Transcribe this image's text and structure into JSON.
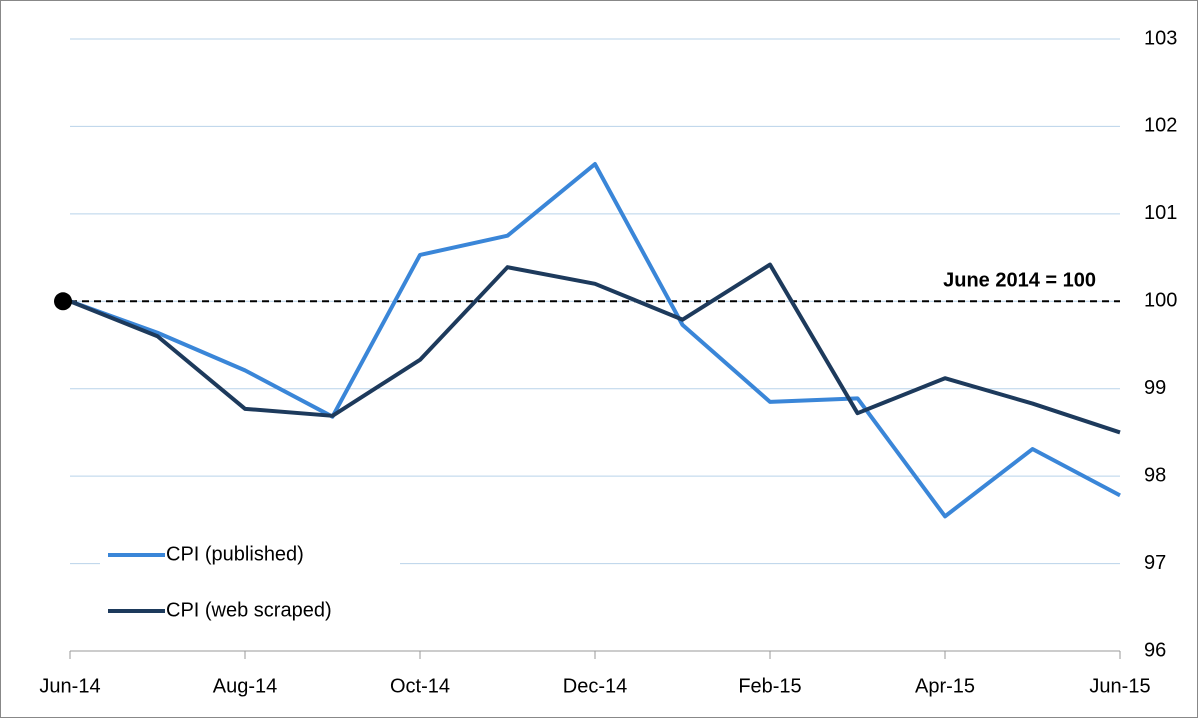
{
  "chart_data": {
    "type": "line",
    "categories": [
      "Jun-14",
      null,
      "Aug-14",
      null,
      "Oct-14",
      null,
      "Dec-14",
      null,
      "Feb-15",
      null,
      "Apr-15",
      null,
      "Jun-15"
    ],
    "series": [
      {
        "name": "CPI (published)",
        "color": "#3a86d8",
        "values": [
          100,
          99.64,
          99.21,
          98.68,
          100.53,
          100.75,
          101.57,
          99.73,
          98.85,
          98.89,
          97.54,
          98.31,
          97.78
        ]
      },
      {
        "name": "CPI (web scraped)",
        "color": "#1d3a5c",
        "values": [
          100,
          99.6,
          98.77,
          98.69,
          99.33,
          100.39,
          100.2,
          99.79,
          100.42,
          98.72,
          99.12,
          98.83,
          98.5
        ]
      }
    ],
    "reference": {
      "value": 100,
      "label": "June 2014 = 100"
    },
    "ylim": [
      96,
      103
    ],
    "yticks": [
      96,
      97,
      98,
      99,
      100,
      101,
      102,
      103
    ],
    "grid": true,
    "legend": "lower left"
  }
}
